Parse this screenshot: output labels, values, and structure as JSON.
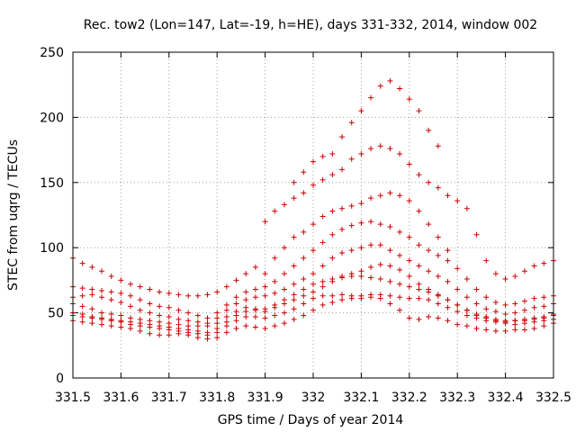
{
  "chart_data": {
    "type": "scatter",
    "title": "Rec. tow2 (Lon=147, Lat=-19, h=HE), days 331-332, 2014, window 002",
    "xlabel": "GPS time / Days of year 2014",
    "ylabel": "STEC from uqrg / TECUs",
    "xlim": [
      331.5,
      332.5
    ],
    "ylim": [
      0,
      250
    ],
    "xticks": [
      331.5,
      331.6,
      331.7,
      331.8,
      331.9,
      332.0,
      332.1,
      332.2,
      332.3,
      332.4,
      332.5
    ],
    "xtick_labels": [
      "331.5",
      "331.6",
      "331.7",
      "331.8",
      "331.9",
      "332",
      "332.1",
      "332.2",
      "332.3",
      "332.4",
      "332.5"
    ],
    "yticks": [
      0,
      50,
      100,
      150,
      200,
      250
    ],
    "ytick_labels": [
      "0",
      "50",
      "100",
      "150",
      "200",
      "250"
    ],
    "grid": true,
    "marker": "+",
    "color": "#cc0000",
    "series": [
      {
        "name": "s1",
        "x": [
          331.5,
          331.52,
          331.54,
          331.56,
          331.58,
          331.6,
          331.62,
          331.64,
          331.66,
          331.68,
          331.7,
          331.72,
          331.74,
          331.76,
          331.78,
          331.8,
          331.82,
          331.84,
          331.86,
          331.88,
          331.9,
          331.92,
          331.94,
          331.96,
          331.98,
          332.0,
          332.02,
          332.04,
          332.06,
          332.08,
          332.1,
          332.12,
          332.14,
          332.16,
          332.18,
          332.2,
          332.22,
          332.24,
          332.26,
          332.28,
          332.3,
          332.32,
          332.34,
          332.36,
          332.38,
          332.4,
          332.42,
          332.44,
          332.46,
          332.48,
          332.5
        ],
        "y": [
          44,
          43,
          42,
          41,
          40,
          39,
          38,
          36,
          34,
          33,
          33,
          34,
          33,
          31,
          30,
          31,
          35,
          38,
          40,
          39,
          38,
          40,
          42,
          45,
          48,
          52,
          56,
          58,
          60,
          61,
          61,
          62,
          61,
          57,
          52,
          46,
          45,
          47,
          46,
          44,
          41,
          40,
          38,
          37,
          36,
          36,
          37,
          37,
          38,
          40,
          42
        ]
      },
      {
        "name": "s2",
        "x": [
          331.5,
          331.52,
          331.54,
          331.56,
          331.58,
          331.6,
          331.62,
          331.64,
          331.66,
          331.68,
          331.7,
          331.72,
          331.74,
          331.76,
          331.78,
          331.8,
          331.82,
          331.84,
          331.86,
          331.88,
          331.9,
          331.92,
          331.94,
          331.96,
          331.98,
          332.0,
          332.02,
          332.04,
          332.06,
          332.08,
          332.1,
          332.12,
          332.14,
          332.16,
          332.18,
          332.2,
          332.22,
          332.24,
          332.26,
          332.28,
          332.3,
          332.32,
          332.34,
          332.36,
          332.38,
          332.4,
          332.42,
          332.44,
          332.46,
          332.48,
          332.5
        ],
        "y": [
          50,
          49,
          47,
          45,
          44,
          43,
          41,
          40,
          39,
          38,
          37,
          36,
          35,
          34,
          33,
          35,
          40,
          44,
          47,
          47,
          46,
          48,
          50,
          53,
          57,
          61,
          63,
          63,
          64,
          63,
          63,
          64,
          64,
          63,
          62,
          61,
          61,
          60,
          57,
          54,
          51,
          48,
          46,
          44,
          43,
          43,
          44,
          44,
          45,
          46,
          48
        ]
      },
      {
        "name": "s3",
        "x": [
          331.5,
          331.52,
          331.54,
          331.56,
          331.58,
          331.6,
          331.62,
          331.64,
          331.66,
          331.68,
          331.7,
          331.72,
          331.74,
          331.76,
          331.78,
          331.8,
          331.82,
          331.84,
          331.86,
          331.88,
          331.9,
          331.92,
          331.94,
          331.96,
          331.98,
          332.0,
          332.02,
          332.04,
          332.06,
          332.08,
          332.1,
          332.12,
          332.14,
          332.16,
          332.18,
          332.2,
          332.22,
          332.24,
          332.26,
          332.28,
          332.3,
          332.32,
          332.34,
          332.36,
          332.38,
          332.4,
          332.42,
          332.44,
          332.46,
          332.48,
          332.5
        ],
        "y": [
          57,
          55,
          53,
          50,
          49,
          48,
          46,
          45,
          44,
          43,
          42,
          41,
          40,
          40,
          40,
          42,
          47,
          51,
          54,
          53,
          51,
          54,
          57,
          60,
          63,
          66,
          70,
          74,
          78,
          80,
          82,
          85,
          87,
          86,
          83,
          78,
          72,
          68,
          64,
          60,
          56,
          52,
          49,
          47,
          45,
          44,
          44,
          45,
          46,
          47,
          49
        ]
      },
      {
        "name": "s4",
        "x": [
          331.5,
          331.52,
          331.54,
          331.56,
          331.58,
          331.6,
          331.62,
          331.64,
          331.66,
          331.68,
          331.7,
          331.72,
          331.74,
          331.76,
          331.78,
          331.8,
          331.82,
          331.84,
          331.86,
          331.88,
          331.9,
          331.92,
          331.94,
          331.96,
          331.98,
          332.0,
          332.02,
          332.04,
          332.06,
          332.08,
          332.1,
          332.12,
          332.14,
          332.16,
          332.18,
          332.2,
          332.22,
          332.24,
          332.26,
          332.28,
          332.3,
          332.32,
          332.34,
          332.36,
          332.38,
          332.4,
          332.42,
          332.44,
          332.46,
          332.48,
          332.5
        ],
        "y": [
          62,
          63,
          64,
          62,
          60,
          58,
          55,
          52,
          50,
          48,
          47,
          45,
          44,
          43,
          42,
          46,
          52,
          57,
          60,
          62,
          63,
          65,
          68,
          72,
          76,
          80,
          86,
          92,
          96,
          98,
          100,
          102,
          102,
          98,
          94,
          90,
          86,
          82,
          78,
          74,
          68,
          62,
          57,
          53,
          51,
          49,
          50,
          52,
          54,
          55,
          57
        ]
      },
      {
        "name": "s5",
        "x": [
          331.5,
          331.52,
          331.54,
          331.56,
          331.58,
          331.6,
          331.62,
          331.64,
          331.66,
          331.68,
          331.7,
          331.72,
          331.74,
          331.76,
          331.78,
          331.8,
          331.82,
          331.84,
          331.86,
          331.88,
          331.9,
          331.92,
          331.94,
          331.96,
          331.98,
          332.0,
          332.02,
          332.04,
          332.06,
          332.08,
          332.1,
          332.12,
          332.14,
          332.16,
          332.18,
          332.2,
          332.22,
          332.24,
          332.26,
          332.28,
          332.3,
          332.32,
          332.34,
          332.36,
          332.38,
          332.4,
          332.42,
          332.44,
          332.46,
          332.48,
          332.5
        ],
        "y": [
          70,
          69,
          68,
          67,
          66,
          65,
          63,
          60,
          57,
          55,
          54,
          52,
          50,
          48,
          46,
          50,
          56,
          62,
          66,
          68,
          70,
          74,
          80,
          86,
          92,
          98,
          104,
          110,
          114,
          117,
          119,
          120,
          118,
          116,
          112,
          108,
          102,
          98,
          94,
          90,
          84,
          76,
          68,
          62,
          58,
          56,
          57,
          59,
          61,
          62,
          63
        ]
      },
      {
        "name": "s6",
        "x": [
          331.5,
          331.52,
          331.54,
          331.56,
          331.58,
          331.6,
          331.62,
          331.64,
          331.66,
          331.68,
          331.7,
          331.72,
          331.74,
          331.76,
          331.78,
          331.8,
          331.82,
          331.84,
          331.86,
          331.88,
          331.9,
          331.92,
          331.94,
          331.96,
          331.98,
          332.0,
          332.02,
          332.04,
          332.06,
          332.08,
          332.1,
          332.12,
          332.14,
          332.16,
          332.18,
          332.2,
          332.22,
          332.24,
          332.26,
          332.28,
          332.3,
          332.32,
          332.34,
          332.36,
          332.38,
          332.4,
          332.42,
          332.44,
          332.46,
          332.48,
          332.5
        ],
        "y": [
          92,
          88,
          85,
          82,
          78,
          75,
          72,
          70,
          68,
          66,
          65,
          64,
          63,
          63,
          64,
          66,
          70,
          75,
          80,
          85,
          120,
          128,
          133,
          138,
          142,
          148,
          152,
          156,
          160,
          168,
          172,
          176,
          178,
          176,
          172,
          164,
          156,
          150,
          146,
          140,
          136,
          130,
          110,
          90,
          80,
          76,
          78,
          82,
          86,
          88,
          90
        ]
      },
      {
        "name": "s7",
        "x": [
          331.96,
          331.98,
          332.0,
          332.02,
          332.04,
          332.06,
          332.08,
          332.1,
          332.12,
          332.14,
          332.16,
          332.18,
          332.2,
          332.22,
          332.24,
          332.26
        ],
        "y": [
          150,
          158,
          166,
          170,
          172,
          185,
          196,
          205,
          215,
          224,
          228,
          222,
          214,
          205,
          190,
          178
        ]
      },
      {
        "name": "s8",
        "x": [
          331.5,
          331.52,
          331.54,
          331.56,
          331.58,
          331.6,
          331.62,
          331.64,
          331.66,
          331.68,
          331.7,
          331.72,
          331.74,
          331.76,
          331.78,
          331.8,
          331.82,
          331.84,
          331.86,
          331.88,
          331.9,
          331.92,
          331.94,
          331.96,
          331.98,
          332.0,
          332.02,
          332.04,
          332.06,
          332.08,
          332.1,
          332.12,
          332.14,
          332.16,
          332.18,
          332.2,
          332.22,
          332.24,
          332.26,
          332.28,
          332.3,
          332.32,
          332.34,
          332.36,
          332.38,
          332.4,
          332.42,
          332.44,
          332.46,
          332.48,
          332.5
        ],
        "y": [
          48,
          47,
          46,
          46,
          45,
          44,
          43,
          42,
          41,
          40,
          39,
          38,
          37,
          36,
          35,
          38,
          43,
          48,
          51,
          52,
          53,
          56,
          60,
          64,
          68,
          72,
          74,
          76,
          77,
          78,
          78,
          77,
          76,
          74,
          72,
          70,
          68,
          66,
          63,
          60,
          56,
          52,
          48,
          46,
          44,
          42,
          41,
          42,
          43,
          44,
          45
        ]
      },
      {
        "name": "s9",
        "x": [
          331.9,
          331.92,
          331.94,
          331.96,
          331.98,
          332.0,
          332.02,
          332.04,
          332.06,
          332.08,
          332.1,
          332.12,
          332.14,
          332.16,
          332.18,
          332.2,
          332.22,
          332.24,
          332.26,
          332.28
        ],
        "y": [
          80,
          92,
          100,
          108,
          112,
          118,
          124,
          128,
          130,
          132,
          134,
          138,
          140,
          142,
          140,
          136,
          128,
          118,
          108,
          98
        ]
      }
    ]
  }
}
